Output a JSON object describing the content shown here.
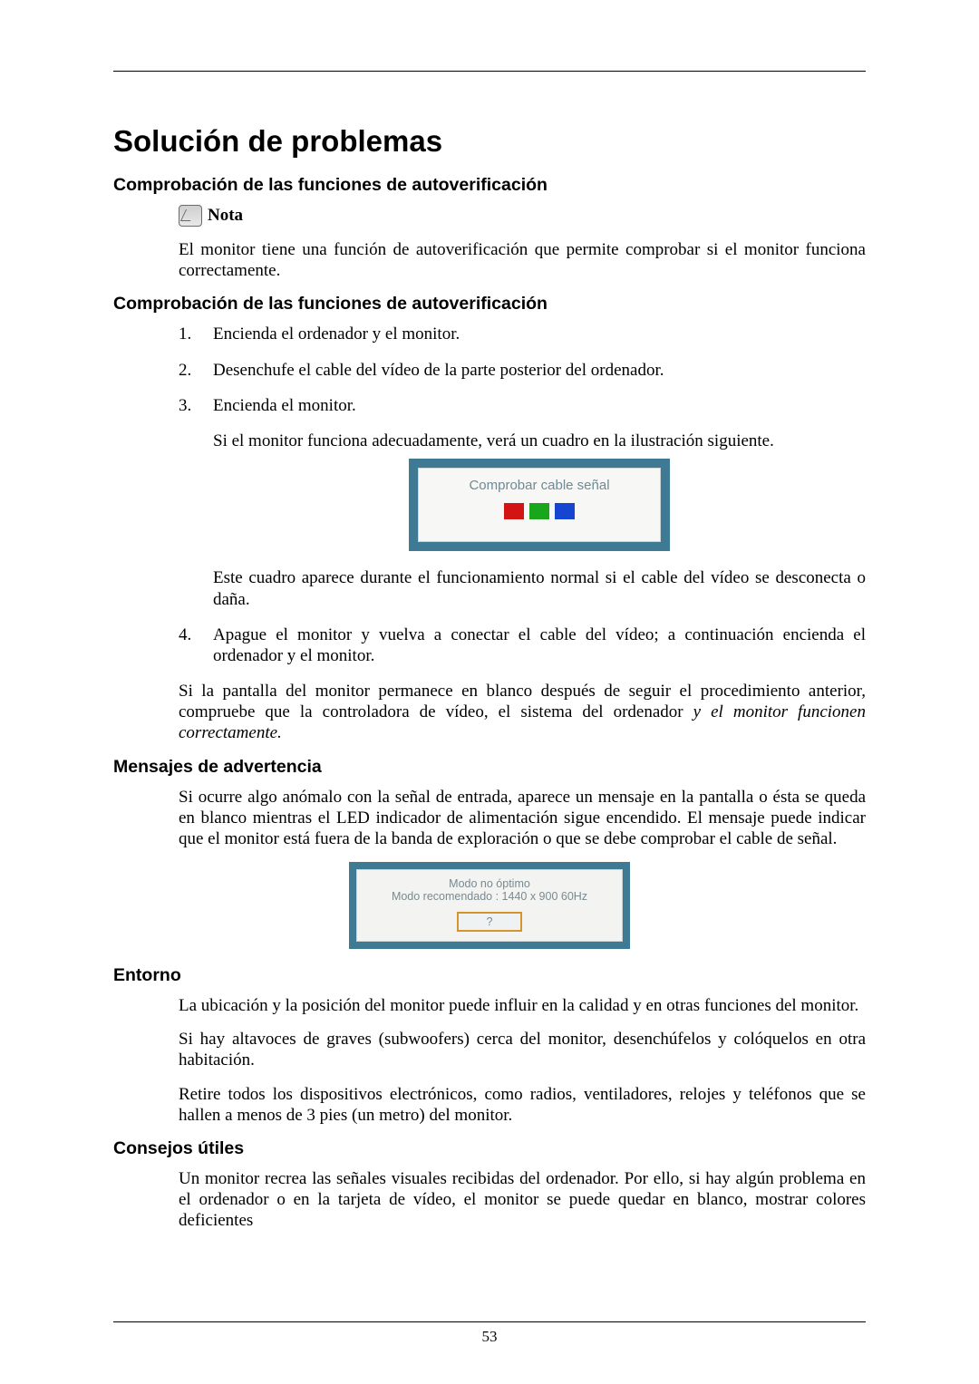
{
  "colors": {
    "page_bg": "#ffffff",
    "text": "#000000",
    "rule": "#000000",
    "fig_frame": "#3f7a94",
    "fig_panel": "#f7f7f5",
    "fig_text": "#6f8a94",
    "btn_border": "#d6942c",
    "red": "#d31414",
    "green": "#1aa61a",
    "blue": "#1646d1"
  },
  "title": "Solución de problemas",
  "section1": {
    "heading": "Comprobación de las funciones de autoverificación",
    "note_label": "Nota",
    "note_para": "El monitor tiene una función de autoverificación que permite comprobar si el monitor funciona correctamente."
  },
  "section2": {
    "heading": "Comprobación de las funciones de autoverificación",
    "items": [
      {
        "n": "1.",
        "text": "Encienda el ordenador y el monitor."
      },
      {
        "n": "2.",
        "text": "Desenchufe el cable del vídeo de la parte posterior del ordenador."
      },
      {
        "n": "3.",
        "text": "Encienda el monitor.",
        "sub1": "Si el monitor funciona adecuadamente, verá un cuadro en la ilustración siguiente.",
        "sub2": "Este cuadro aparece durante el funcionamiento normal si el cable del vídeo se desconecta o daña."
      },
      {
        "n": "4.",
        "text": "Apague el monitor y vuelva a conectar el cable del vídeo; a continuación encienda el ordenador y el monitor."
      }
    ],
    "closing_plain": "Si la pantalla del monitor permanece en blanco después de seguir el procedimiento anterior, compruebe que la controladora de vídeo, el sistema del ordenador ",
    "closing_italic": "y el monitor funcionen correctamente."
  },
  "fig1": {
    "text": "Comprobar cable señal"
  },
  "section3": {
    "heading": "Mensajes de advertencia",
    "para": "Si ocurre algo anómalo con la señal de entrada, aparece un mensaje en la pantalla o ésta se queda en blanco mientras el LED indicador de alimentación sigue encendido. El mensaje puede indicar que el monitor está fuera de la banda de exploración o que se debe comprobar el cable de señal."
  },
  "fig2": {
    "line1": "Modo no óptimo",
    "line2": "Modo recomendado : 1440 x 900 60Hz",
    "button": "?"
  },
  "section4": {
    "heading": "Entorno",
    "p1": "La ubicación y la posición del monitor puede influir en la calidad y en otras funciones del monitor.",
    "p2": "Si hay altavoces de graves (subwoofers) cerca del monitor, desenchúfelos y colóquelos en otra habitación.",
    "p3": "Retire todos los dispositivos electrónicos, como radios, ventiladores, relojes y teléfonos que se hallen a menos de 3 pies (un metro) del monitor."
  },
  "section5": {
    "heading": "Consejos útiles",
    "p1": "Un monitor recrea las señales visuales recibidas del ordenador. Por ello, si hay algún problema en el ordenador o en la tarjeta de vídeo, el monitor se puede quedar en blanco, mostrar colores deficientes"
  },
  "page_number": "53"
}
